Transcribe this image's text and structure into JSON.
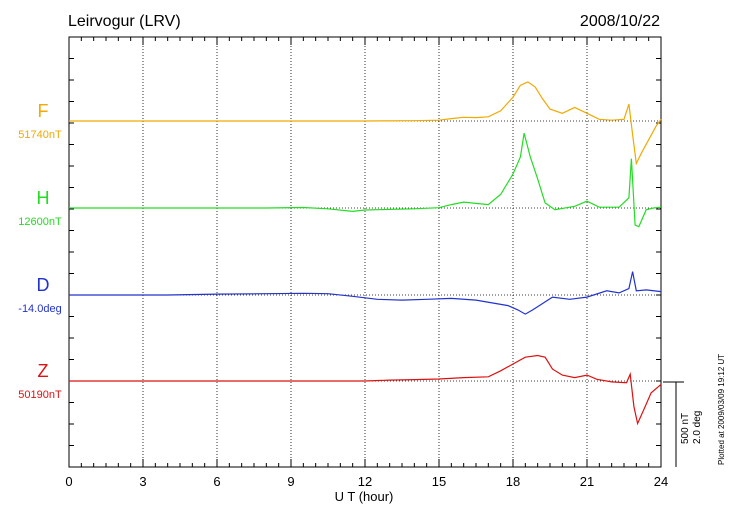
{
  "header": {
    "station": "Leirvogur (LRV)",
    "date": "2008/10/22"
  },
  "chart_data": {
    "type": "line",
    "xlabel": "U T (hour)",
    "xlim": [
      0,
      24
    ],
    "x_ticks": [
      "0",
      "3",
      "6",
      "9",
      "12",
      "15",
      "18",
      "21",
      "24"
    ],
    "grid": "dotted vertical every 3 hours, dotted baseline per trace",
    "scale_bar": {
      "nT": "500 nT",
      "deg": "2.0 deg"
    },
    "plotted_note": "Plotted at 2009/03/09 19:12 UT",
    "series": [
      {
        "name": "F",
        "baseline": "51740nT",
        "color": "#f0aa00",
        "unit": "nT",
        "points": [
          [
            0,
            0
          ],
          [
            2,
            0
          ],
          [
            4,
            0
          ],
          [
            6,
            0
          ],
          [
            8,
            0
          ],
          [
            10,
            0
          ],
          [
            12,
            0
          ],
          [
            14,
            2
          ],
          [
            15,
            5
          ],
          [
            15.5,
            14
          ],
          [
            16,
            22
          ],
          [
            16.5,
            20
          ],
          [
            17,
            25
          ],
          [
            17.5,
            60
          ],
          [
            18,
            140
          ],
          [
            18.3,
            210
          ],
          [
            18.6,
            230
          ],
          [
            18.9,
            200
          ],
          [
            19.2,
            130
          ],
          [
            19.5,
            70
          ],
          [
            20,
            45
          ],
          [
            20.5,
            80
          ],
          [
            21,
            45
          ],
          [
            21.5,
            10
          ],
          [
            22,
            5
          ],
          [
            22.5,
            10
          ],
          [
            22.7,
            100
          ],
          [
            22.85,
            -80
          ],
          [
            23,
            -250
          ],
          [
            23.2,
            -190
          ],
          [
            23.5,
            -110
          ],
          [
            23.8,
            -30
          ],
          [
            24,
            10
          ]
        ]
      },
      {
        "name": "H",
        "baseline": "12600nT",
        "color": "#22dd22",
        "unit": "nT",
        "points": [
          [
            0,
            0
          ],
          [
            2,
            0
          ],
          [
            4,
            0
          ],
          [
            6,
            0
          ],
          [
            8,
            0
          ],
          [
            9.5,
            3
          ],
          [
            10.5,
            -5
          ],
          [
            11.5,
            -20
          ],
          [
            12,
            -12
          ],
          [
            13,
            -8
          ],
          [
            14,
            -5
          ],
          [
            15,
            2
          ],
          [
            15.5,
            20
          ],
          [
            16,
            35
          ],
          [
            17,
            20
          ],
          [
            17.5,
            80
          ],
          [
            18,
            200
          ],
          [
            18.3,
            300
          ],
          [
            18.45,
            440
          ],
          [
            18.7,
            300
          ],
          [
            19,
            170
          ],
          [
            19.3,
            30
          ],
          [
            19.7,
            -10
          ],
          [
            20.5,
            10
          ],
          [
            21,
            40
          ],
          [
            21.5,
            5
          ],
          [
            22.3,
            5
          ],
          [
            22.7,
            60
          ],
          [
            22.8,
            290
          ],
          [
            22.95,
            -100
          ],
          [
            23.1,
            -110
          ],
          [
            23.4,
            -10
          ],
          [
            23.7,
            0
          ],
          [
            24,
            5
          ]
        ]
      },
      {
        "name": "D",
        "baseline": "-14.0deg",
        "color": "#2233cc",
        "unit": "deg",
        "points": [
          [
            0,
            0
          ],
          [
            2,
            0
          ],
          [
            4,
            0
          ],
          [
            6,
            0.02
          ],
          [
            8,
            0.03
          ],
          [
            9.5,
            0.04
          ],
          [
            10.5,
            0.03
          ],
          [
            11.5,
            -0.03
          ],
          [
            12.5,
            -0.1
          ],
          [
            13.5,
            -0.12
          ],
          [
            14.5,
            -0.1
          ],
          [
            15.5,
            -0.08
          ],
          [
            16.5,
            -0.12
          ],
          [
            17.3,
            -0.2
          ],
          [
            17.8,
            -0.25
          ],
          [
            18.2,
            -0.35
          ],
          [
            18.5,
            -0.45
          ],
          [
            18.8,
            -0.35
          ],
          [
            19.2,
            -0.2
          ],
          [
            19.6,
            -0.05
          ],
          [
            20.3,
            -0.1
          ],
          [
            21,
            -0.05
          ],
          [
            21.8,
            0.1
          ],
          [
            22.3,
            0.05
          ],
          [
            22.7,
            0.15
          ],
          [
            22.85,
            0.55
          ],
          [
            23,
            0.1
          ],
          [
            23.4,
            0.12
          ],
          [
            24,
            0.08
          ]
        ]
      },
      {
        "name": "Z",
        "baseline": "50190nT",
        "color": "#dd1111",
        "unit": "nT",
        "points": [
          [
            0,
            0
          ],
          [
            2,
            0
          ],
          [
            4,
            0
          ],
          [
            6,
            0
          ],
          [
            8,
            0
          ],
          [
            10,
            0
          ],
          [
            12,
            0
          ],
          [
            13,
            5
          ],
          [
            14,
            8
          ],
          [
            15,
            12
          ],
          [
            16,
            20
          ],
          [
            17,
            25
          ],
          [
            17.5,
            60
          ],
          [
            18,
            100
          ],
          [
            18.5,
            140
          ],
          [
            19,
            150
          ],
          [
            19.3,
            140
          ],
          [
            19.6,
            70
          ],
          [
            20,
            35
          ],
          [
            20.5,
            20
          ],
          [
            21,
            35
          ],
          [
            21.4,
            10
          ],
          [
            22,
            -5
          ],
          [
            22.6,
            -10
          ],
          [
            22.75,
            40
          ],
          [
            22.9,
            -150
          ],
          [
            23.05,
            -250
          ],
          [
            23.3,
            -170
          ],
          [
            23.6,
            -70
          ],
          [
            24,
            -20
          ]
        ]
      }
    ]
  }
}
